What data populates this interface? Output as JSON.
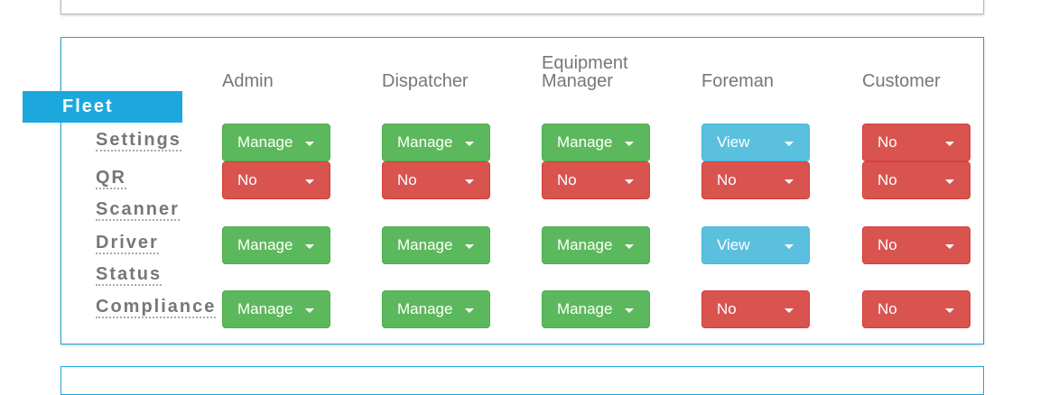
{
  "section_title": "Fleet",
  "columns": [
    "Admin",
    "Dispatcher",
    "Equipment Manager",
    "Foreman",
    "Customer"
  ],
  "rows": [
    {
      "label": "Settings",
      "values": [
        "Manage",
        "Manage",
        "Manage",
        "View",
        "No"
      ]
    },
    {
      "label": "QR Scanner",
      "values": [
        "No",
        "No",
        "No",
        "No",
        "No"
      ]
    },
    {
      "label": "Driver Status",
      "values": [
        "Manage",
        "Manage",
        "Manage",
        "View",
        "No"
      ]
    },
    {
      "label": "Compliance",
      "values": [
        "Manage",
        "Manage",
        "Manage",
        "No",
        "No"
      ]
    }
  ],
  "colors": {
    "accent": "#1ca8dd",
    "manage": "#5cb85c",
    "no": "#d9534f",
    "view": "#5bc0de"
  }
}
